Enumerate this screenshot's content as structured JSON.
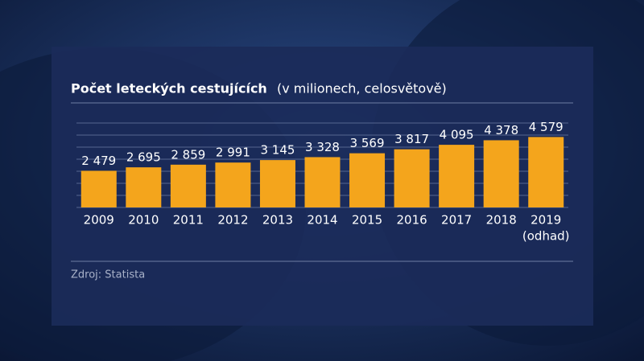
{
  "chart_data": {
    "type": "bar",
    "title": "Počet leteckých cestujících",
    "subtitle": "(v milionech, celosvětově)",
    "categories": [
      "2009",
      "2010",
      "2011",
      "2012",
      "2013",
      "2014",
      "2015",
      "2016",
      "2017",
      "2018",
      "2019"
    ],
    "annotation": "(odhad)",
    "values": [
      2479,
      2695,
      2859,
      2991,
      3145,
      3328,
      3569,
      3817,
      4095,
      4378,
      4579
    ],
    "value_labels": [
      "2 479",
      "2 695",
      "2 859",
      "2 991",
      "3 145",
      "3 328",
      "3 569",
      "3 817",
      "4 095",
      "4 378",
      "4 579"
    ],
    "color": "#f4a51c",
    "ylim": [
      200,
      5600
    ],
    "yticks": [
      200,
      950,
      1700,
      2450,
      3200,
      3950,
      4700,
      5450
    ],
    "grid": true,
    "source": "Zdroj: Statista"
  }
}
